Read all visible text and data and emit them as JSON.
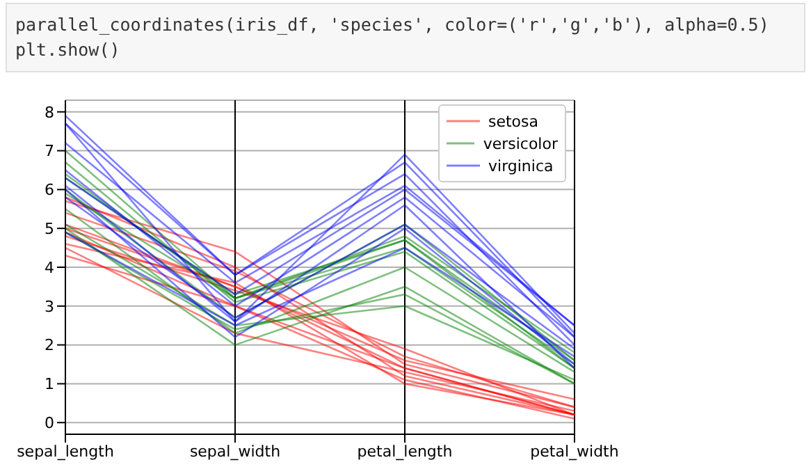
{
  "chart_data": {
    "type": "line",
    "annotations": [
      "parallel_coordinates(iris_df, 'species', color=('r','g','b'), alpha=0.5)",
      "plt.show()"
    ],
    "categories": [
      "sepal_length",
      "sepal_width",
      "petal_length",
      "petal_width"
    ],
    "ylim": [
      -0.3,
      8.3
    ],
    "yticks": [
      0,
      1,
      2,
      3,
      4,
      5,
      6,
      7,
      8
    ],
    "grid": true,
    "legend": "top right",
    "marker": "none",
    "series": [
      {
        "name": "setosa",
        "color": "#ff0000",
        "values": [
          5.1,
          3.5,
          1.4,
          0.2
        ]
      },
      {
        "color": "#ff0000",
        "values": [
          4.9,
          3.0,
          1.4,
          0.2
        ]
      },
      {
        "color": "#ff0000",
        "values": [
          4.3,
          3.0,
          1.1,
          0.1
        ]
      },
      {
        "color": "#ff0000",
        "values": [
          5.8,
          4.0,
          1.2,
          0.2
        ]
      },
      {
        "color": "#ff0000",
        "values": [
          5.7,
          4.4,
          1.5,
          0.4
        ]
      },
      {
        "color": "#ff0000",
        "values": [
          4.8,
          3.4,
          1.9,
          0.2
        ]
      },
      {
        "color": "#ff0000",
        "values": [
          5.0,
          3.5,
          1.6,
          0.6
        ]
      },
      {
        "color": "#ff0000",
        "values": [
          4.5,
          2.3,
          1.3,
          0.3
        ]
      },
      {
        "color": "#ff0000",
        "values": [
          5.4,
          3.9,
          1.7,
          0.4
        ]
      },
      {
        "color": "#ff0000",
        "values": [
          4.6,
          3.6,
          1.0,
          0.2
        ]
      },
      {
        "name": "versicolor",
        "color": "#008000",
        "values": [
          7.0,
          3.2,
          4.7,
          1.4
        ]
      },
      {
        "color": "#008000",
        "values": [
          6.4,
          3.2,
          4.5,
          1.5
        ]
      },
      {
        "color": "#008000",
        "values": [
          5.5,
          2.3,
          4.0,
          1.3
        ]
      },
      {
        "color": "#008000",
        "values": [
          5.0,
          2.0,
          3.5,
          1.0
        ]
      },
      {
        "color": "#008000",
        "values": [
          4.9,
          2.4,
          3.3,
          1.0
        ]
      },
      {
        "color": "#008000",
        "values": [
          5.1,
          2.5,
          3.0,
          1.1
        ]
      },
      {
        "color": "#008000",
        "values": [
          6.0,
          2.7,
          5.1,
          1.6
        ]
      },
      {
        "color": "#008000",
        "values": [
          5.9,
          3.2,
          4.8,
          1.8
        ]
      },
      {
        "color": "#008000",
        "values": [
          6.7,
          3.1,
          4.4,
          1.4
        ]
      },
      {
        "color": "#008000",
        "values": [
          6.3,
          3.3,
          4.7,
          1.6
        ]
      },
      {
        "name": "virginica",
        "color": "#0000ff",
        "values": [
          6.3,
          3.3,
          6.0,
          2.5
        ]
      },
      {
        "color": "#0000ff",
        "values": [
          5.8,
          2.7,
          5.1,
          1.9
        ]
      },
      {
        "color": "#0000ff",
        "values": [
          7.9,
          3.8,
          6.4,
          2.0
        ]
      },
      {
        "color": "#0000ff",
        "values": [
          7.7,
          2.6,
          6.9,
          2.3
        ]
      },
      {
        "color": "#0000ff",
        "values": [
          4.9,
          2.5,
          4.5,
          1.7
        ]
      },
      {
        "color": "#0000ff",
        "values": [
          6.0,
          2.2,
          5.0,
          1.5
        ]
      },
      {
        "color": "#0000ff",
        "values": [
          7.2,
          3.6,
          6.1,
          2.5
        ]
      },
      {
        "color": "#0000ff",
        "values": [
          6.5,
          3.0,
          5.8,
          2.2
        ]
      },
      {
        "color": "#0000ff",
        "values": [
          6.1,
          2.6,
          5.6,
          1.4
        ]
      },
      {
        "color": "#0000ff",
        "values": [
          7.7,
          3.8,
          6.7,
          2.2
        ]
      }
    ]
  }
}
